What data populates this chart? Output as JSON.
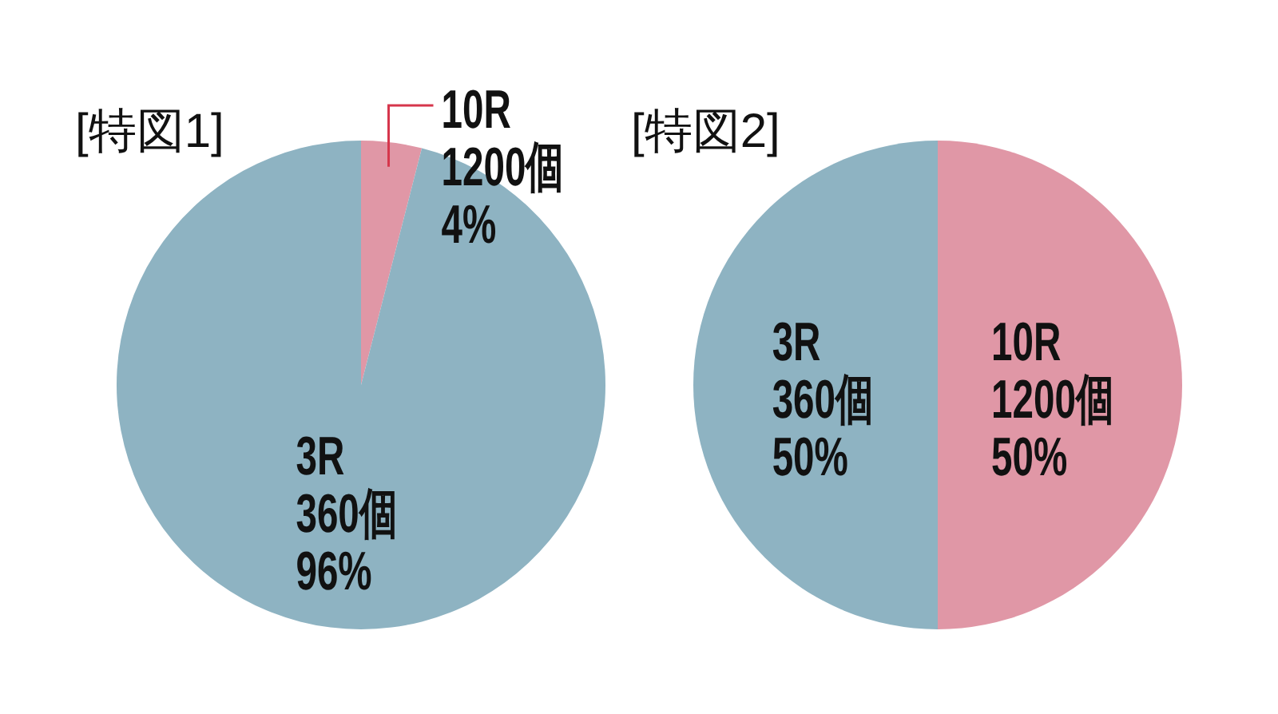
{
  "chart_data": [
    {
      "type": "pie",
      "title": "[特図1]",
      "categories": [
        "10R",
        "3R"
      ],
      "values": [
        4,
        96
      ],
      "colors": [
        "#e097a6",
        "#8eb3c2"
      ],
      "value_labels": [
        "1200個\n4%",
        "360個\n96%"
      ]
    },
    {
      "type": "pie",
      "title": "[特図2]",
      "categories": [
        "10R",
        "3R"
      ],
      "values": [
        50,
        50
      ],
      "colors": [
        "#e097a6",
        "#8eb3c2"
      ],
      "value_labels": [
        "1200個\n50%",
        "360個\n50%"
      ]
    }
  ]
}
